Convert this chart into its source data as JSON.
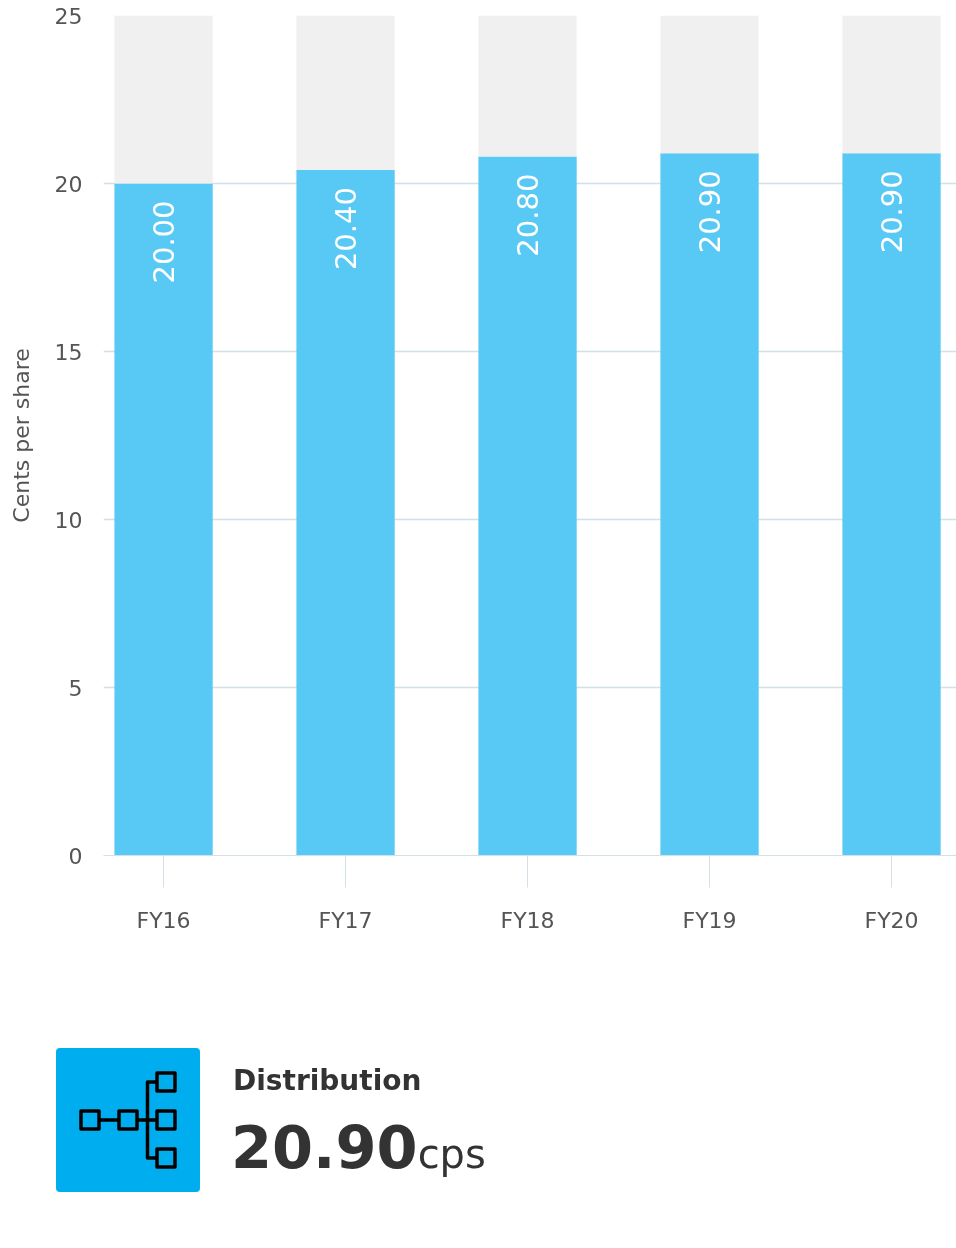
{
  "chart_data": [
    {
      "type": "bar",
      "ylabel": "Cents per share",
      "categories": [
        "FY16",
        "FY17",
        "FY18",
        "FY19",
        "FY20"
      ],
      "stacked": true,
      "series": [
        {
          "color": "#58c9f4",
          "values": [
            20.0,
            20.4,
            20.8,
            20.9,
            20.9
          ],
          "value_labels": [
            "20.00",
            "20.40",
            "20.80",
            "20.90",
            "20.90"
          ]
        },
        {
          "color": "#f0f0f0",
          "values": [
            5.0,
            4.6,
            4.2,
            4.1,
            4.1
          ]
        }
      ],
      "ylim": [
        0,
        25
      ],
      "yticks": [
        0,
        5,
        10,
        15,
        20,
        25
      ],
      "grid": "y"
    },
    {
      "type": "other",
      "title": "Distribution",
      "annotations": [
        "20.90",
        "cps"
      ]
    }
  ]
}
